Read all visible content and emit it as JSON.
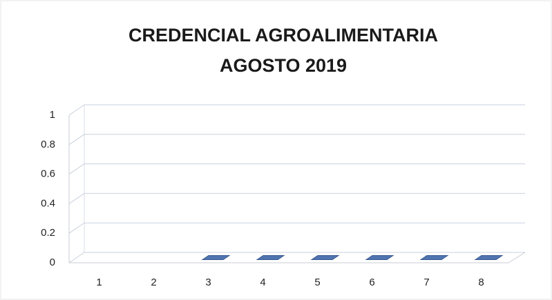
{
  "chart_data": {
    "type": "bar3d",
    "title": "CREDENCIAL AGROALIMENTARIA",
    "subtitle": "AGOSTO 2019",
    "categories": [
      "1",
      "2",
      "3",
      "4",
      "5",
      "6",
      "7",
      "8"
    ],
    "values": [
      null,
      null,
      0,
      0,
      0,
      0,
      0,
      0
    ],
    "color": "#4f74b0",
    "ylim": [
      0,
      1
    ],
    "yticks": [
      0,
      0.2,
      0.4,
      0.6,
      0.8,
      1
    ],
    "grid": true
  }
}
